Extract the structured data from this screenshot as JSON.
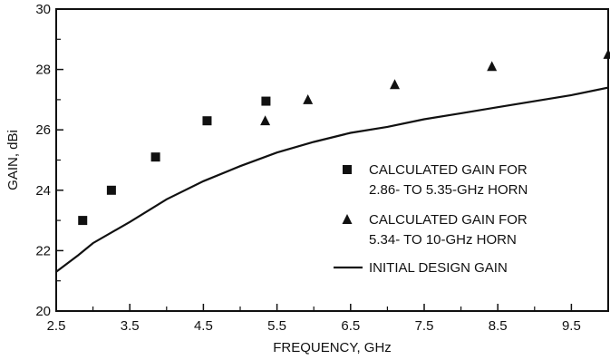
{
  "chart_data": {
    "type": "scatter",
    "title": "",
    "xlabel": "FREQUENCY, GHz",
    "ylabel": "GAIN, dBi",
    "xlim": [
      2.5,
      10
    ],
    "ylim": [
      20,
      30
    ],
    "xticks": [
      2.5,
      3.5,
      4.5,
      5.5,
      6.5,
      7.5,
      8.5,
      9.5
    ],
    "yticks": [
      20,
      22,
      24,
      26,
      28,
      30
    ],
    "grid": false,
    "legend_position": "right",
    "series": [
      {
        "name": "CALCULATED GAIN FOR 2.86- TO 5.35-GHz HORN",
        "legend_lines": [
          "CALCULATED GAIN FOR",
          "2.86- TO 5.35-GHz HORN"
        ],
        "marker": "square",
        "x": [
          2.86,
          3.25,
          3.85,
          4.55,
          5.35
        ],
        "y": [
          23.0,
          24.0,
          25.1,
          26.3,
          26.95
        ]
      },
      {
        "name": "CALCULATED GAIN FOR 5.34- TO 10-GHz HORN",
        "legend_lines": [
          "CALCULATED GAIN FOR",
          "5.34- TO 10-GHz HORN"
        ],
        "marker": "triangle",
        "x": [
          5.34,
          5.92,
          7.1,
          8.42,
          10.0
        ],
        "y": [
          26.3,
          27.0,
          27.5,
          28.1,
          28.5
        ]
      },
      {
        "name": "INITIAL DESIGN GAIN",
        "legend_lines": [
          "INITIAL DESIGN GAIN"
        ],
        "marker": "line",
        "x": [
          2.5,
          2.8,
          3.0,
          3.5,
          4.0,
          4.5,
          5.0,
          5.5,
          6.0,
          6.5,
          7.0,
          7.5,
          8.0,
          8.5,
          9.0,
          9.5,
          10.0
        ],
        "y": [
          21.3,
          21.85,
          22.25,
          22.95,
          23.7,
          24.3,
          24.8,
          25.25,
          25.6,
          25.9,
          26.1,
          26.35,
          26.55,
          26.75,
          26.95,
          27.15,
          27.4
        ]
      }
    ]
  }
}
